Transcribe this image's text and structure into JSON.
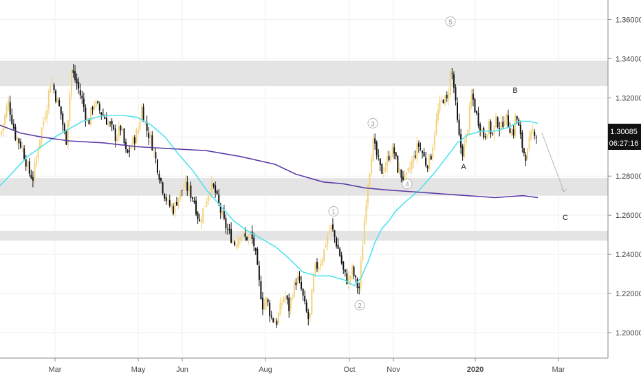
{
  "chart_data": {
    "type": "candlestick",
    "title": "",
    "xlabel": "",
    "ylabel": "",
    "ylim": [
      1.187,
      1.37
    ],
    "xlim": [
      0,
      880
    ],
    "y_ticks": [
      "1.20000",
      "1.22000",
      "1.24000",
      "1.26000",
      "1.28000",
      "1.30000",
      "1.32000",
      "1.34000",
      "1.36000"
    ],
    "x_ticks": [
      {
        "label": "Mar",
        "x": 80
      },
      {
        "label": "May",
        "x": 201
      },
      {
        "label": "Jun",
        "x": 265
      },
      {
        "label": "Aug",
        "x": 386
      },
      {
        "label": "Oct",
        "x": 508
      },
      {
        "label": "Nov",
        "x": 572
      },
      {
        "label": "2020",
        "x": 691
      },
      {
        "label": "Mar",
        "x": 812
      }
    ],
    "price_label": {
      "value": "1.30085",
      "countdown": "06:27:16"
    },
    "colors": {
      "up": "#f3d27a",
      "down": "#111111",
      "ma_fast": "#4fe3f0",
      "ma_slow": "#5b3da8",
      "zone": "#e4e4e4",
      "grid": "#efefef"
    },
    "zones": [
      [
        1.326,
        1.339
      ],
      [
        1.27,
        1.279
      ],
      [
        1.247,
        1.252
      ]
    ],
    "close_path": [
      [
        2,
        1.303
      ],
      [
        12,
        1.318
      ],
      [
        22,
        1.301
      ],
      [
        32,
        1.295
      ],
      [
        42,
        1.282
      ],
      [
        48,
        1.279
      ],
      [
        58,
        1.3
      ],
      [
        68,
        1.316
      ],
      [
        74,
        1.33
      ],
      [
        80,
        1.322
      ],
      [
        88,
        1.313
      ],
      [
        96,
        1.297
      ],
      [
        104,
        1.334
      ],
      [
        112,
        1.327
      ],
      [
        120,
        1.318
      ],
      [
        128,
        1.306
      ],
      [
        136,
        1.318
      ],
      [
        144,
        1.314
      ],
      [
        152,
        1.31
      ],
      [
        160,
        1.306
      ],
      [
        168,
        1.3
      ],
      [
        176,
        1.305
      ],
      [
        184,
        1.29
      ],
      [
        192,
        1.297
      ],
      [
        200,
        1.302
      ],
      [
        206,
        1.315
      ],
      [
        212,
        1.305
      ],
      [
        220,
        1.298
      ],
      [
        226,
        1.289
      ],
      [
        232,
        1.28
      ],
      [
        238,
        1.272
      ],
      [
        244,
        1.266
      ],
      [
        252,
        1.263
      ],
      [
        260,
        1.27
      ],
      [
        268,
        1.275
      ],
      [
        274,
        1.273
      ],
      [
        282,
        1.268
      ],
      [
        290,
        1.256
      ],
      [
        298,
        1.266
      ],
      [
        306,
        1.275
      ],
      [
        312,
        1.273
      ],
      [
        318,
        1.265
      ],
      [
        326,
        1.256
      ],
      [
        334,
        1.25
      ],
      [
        342,
        1.245
      ],
      [
        350,
        1.252
      ],
      [
        356,
        1.248
      ],
      [
        364,
        1.25
      ],
      [
        370,
        1.244
      ],
      [
        376,
        1.227
      ],
      [
        382,
        1.214
      ],
      [
        388,
        1.217
      ],
      [
        394,
        1.208
      ],
      [
        402,
        1.205
      ],
      [
        408,
        1.213
      ],
      [
        414,
        1.22
      ],
      [
        420,
        1.212
      ],
      [
        426,
        1.222
      ],
      [
        432,
        1.228
      ],
      [
        438,
        1.222
      ],
      [
        444,
        1.212
      ],
      [
        450,
        1.205
      ],
      [
        454,
        1.222
      ],
      [
        458,
        1.233
      ],
      [
        464,
        1.235
      ],
      [
        470,
        1.24
      ],
      [
        476,
        1.25
      ],
      [
        482,
        1.254
      ],
      [
        488,
        1.247
      ],
      [
        494,
        1.24
      ],
      [
        500,
        1.23
      ],
      [
        506,
        1.226
      ],
      [
        512,
        1.232
      ],
      [
        518,
        1.225
      ],
      [
        522,
        1.222
      ],
      [
        526,
        1.24
      ],
      [
        530,
        1.258
      ],
      [
        534,
        1.275
      ],
      [
        538,
        1.285
      ],
      [
        542,
        1.298
      ],
      [
        548,
        1.29
      ],
      [
        554,
        1.282
      ],
      [
        560,
        1.285
      ],
      [
        566,
        1.291
      ],
      [
        572,
        1.294
      ],
      [
        578,
        1.284
      ],
      [
        584,
        1.28
      ],
      [
        590,
        1.278
      ],
      [
        596,
        1.284
      ],
      [
        602,
        1.29
      ],
      [
        608,
        1.296
      ],
      [
        614,
        1.292
      ],
      [
        620,
        1.286
      ],
      [
        626,
        1.289
      ],
      [
        632,
        1.303
      ],
      [
        638,
        1.315
      ],
      [
        644,
        1.32
      ],
      [
        650,
        1.318
      ],
      [
        656,
        1.336
      ],
      [
        660,
        1.325
      ],
      [
        664,
        1.31
      ],
      [
        668,
        1.298
      ],
      [
        672,
        1.292
      ],
      [
        676,
        1.296
      ],
      [
        680,
        1.305
      ],
      [
        686,
        1.322
      ],
      [
        692,
        1.312
      ],
      [
        698,
        1.306
      ],
      [
        704,
        1.3
      ],
      [
        710,
        1.306
      ],
      [
        716,
        1.301
      ],
      [
        722,
        1.309
      ],
      [
        728,
        1.304
      ],
      [
        734,
        1.311
      ],
      [
        740,
        1.306
      ],
      [
        746,
        1.301
      ],
      [
        750,
        1.312
      ],
      [
        754,
        1.305
      ],
      [
        758,
        1.297
      ],
      [
        762,
        1.292
      ],
      [
        766,
        1.29
      ],
      [
        770,
        1.298
      ],
      [
        776,
        1.304
      ],
      [
        780,
        1.301
      ]
    ],
    "series": [
      {
        "values": [
          [
            0,
            1.275
          ],
          [
            40,
            1.29
          ],
          [
            80,
            1.3
          ],
          [
            120,
            1.308
          ],
          [
            150,
            1.311
          ],
          [
            180,
            1.311
          ],
          [
            200,
            1.31
          ],
          [
            220,
            1.306
          ],
          [
            240,
            1.3
          ],
          [
            260,
            1.291
          ],
          [
            280,
            1.283
          ],
          [
            300,
            1.273
          ],
          [
            320,
            1.265
          ],
          [
            340,
            1.257
          ],
          [
            360,
            1.252
          ],
          [
            380,
            1.248
          ],
          [
            400,
            1.244
          ],
          [
            420,
            1.238
          ],
          [
            440,
            1.231
          ],
          [
            460,
            1.229
          ],
          [
            480,
            1.229
          ],
          [
            500,
            1.227
          ],
          [
            515,
            1.224
          ],
          [
            525,
            1.228
          ],
          [
            535,
            1.236
          ],
          [
            545,
            1.246
          ],
          [
            555,
            1.253
          ],
          [
            565,
            1.257
          ],
          [
            575,
            1.262
          ],
          [
            590,
            1.267
          ],
          [
            610,
            1.273
          ],
          [
            630,
            1.281
          ],
          [
            650,
            1.29
          ],
          [
            665,
            1.297
          ],
          [
            680,
            1.301
          ],
          [
            700,
            1.303
          ],
          [
            720,
            1.303
          ],
          [
            740,
            1.305
          ],
          [
            755,
            1.308
          ],
          [
            770,
            1.308
          ],
          [
            782,
            1.307
          ]
        ]
      },
      {
        "values": [
          [
            0,
            1.306
          ],
          [
            30,
            1.302
          ],
          [
            60,
            1.3
          ],
          [
            100,
            1.298
          ],
          [
            150,
            1.297
          ],
          [
            200,
            1.295
          ],
          [
            250,
            1.294
          ],
          [
            300,
            1.293
          ],
          [
            350,
            1.29
          ],
          [
            400,
            1.286
          ],
          [
            430,
            1.281
          ],
          [
            470,
            1.277
          ],
          [
            500,
            1.276
          ],
          [
            530,
            1.274
          ],
          [
            560,
            1.273
          ],
          [
            600,
            1.272
          ],
          [
            640,
            1.271
          ],
          [
            680,
            1.27
          ],
          [
            720,
            1.269
          ],
          [
            760,
            1.27
          ],
          [
            782,
            1.269
          ]
        ]
      }
    ],
    "annotations": [
      {
        "text": "5",
        "kind": "circle",
        "x": 655,
        "y": 1.359
      },
      {
        "text": "3",
        "kind": "circle",
        "x": 542,
        "y": 1.307
      },
      {
        "text": "4",
        "kind": "circle",
        "x": 592,
        "y": 1.276
      },
      {
        "text": "1",
        "kind": "circle",
        "x": 485,
        "y": 1.262
      },
      {
        "text": "2",
        "kind": "circle",
        "x": 523,
        "y": 1.214
      },
      {
        "text": "A",
        "kind": "text",
        "x": 674,
        "y": 1.285
      },
      {
        "text": "B",
        "kind": "text",
        "x": 749,
        "y": 1.324
      },
      {
        "text": "C",
        "kind": "text",
        "x": 822,
        "y": 1.259
      }
    ],
    "projection": [
      [
        788,
        1.302
      ],
      [
        820,
        1.272
      ]
    ]
  }
}
